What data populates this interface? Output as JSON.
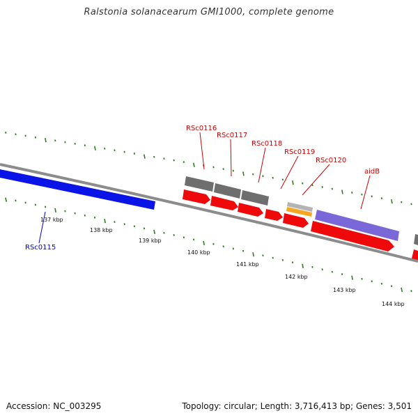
{
  "title": "Ralstonia solanacearum GMI1000, complete genome",
  "accession_text": "Accession: NC_003295",
  "topology_text": "Topology: circular; Length: 3,716,413 bp; Genes: 3,501",
  "colors": {
    "backbone": "#8c8c8c",
    "tick": "#2e7d1e",
    "cds_blue": "#0a14e6",
    "cds_purple": "#7b68d8",
    "cds_red": "#ee0a0a",
    "cds_gray": "#6e6e6e",
    "cds_orange": "#f5a623",
    "cds_lightgray": "#b4b4b4",
    "label_red": "#cc0000",
    "label_blue": "#0000cc"
  },
  "scale": {
    "unit": "kbp",
    "labeled_ticks": [
      {
        "text": "137 kbp"
      },
      {
        "text": "138 kbp"
      },
      {
        "text": "139 kbp"
      },
      {
        "text": "140 kbp"
      },
      {
        "text": "141 kbp"
      },
      {
        "text": "142 kbp"
      },
      {
        "text": "143 kbp"
      },
      {
        "text": "144 kbp"
      }
    ]
  },
  "genes": [
    {
      "name": "RSc0115",
      "label_color": "blue"
    },
    {
      "name": "RSc0116",
      "label_color": "red"
    },
    {
      "name": "RSc0117",
      "label_color": "red"
    },
    {
      "name": "RSc0118",
      "label_color": "red"
    },
    {
      "name": "RSc0119",
      "label_color": "red"
    },
    {
      "name": "RSc0120",
      "label_color": "red"
    },
    {
      "name": "aidB",
      "label_color": "red"
    }
  ]
}
